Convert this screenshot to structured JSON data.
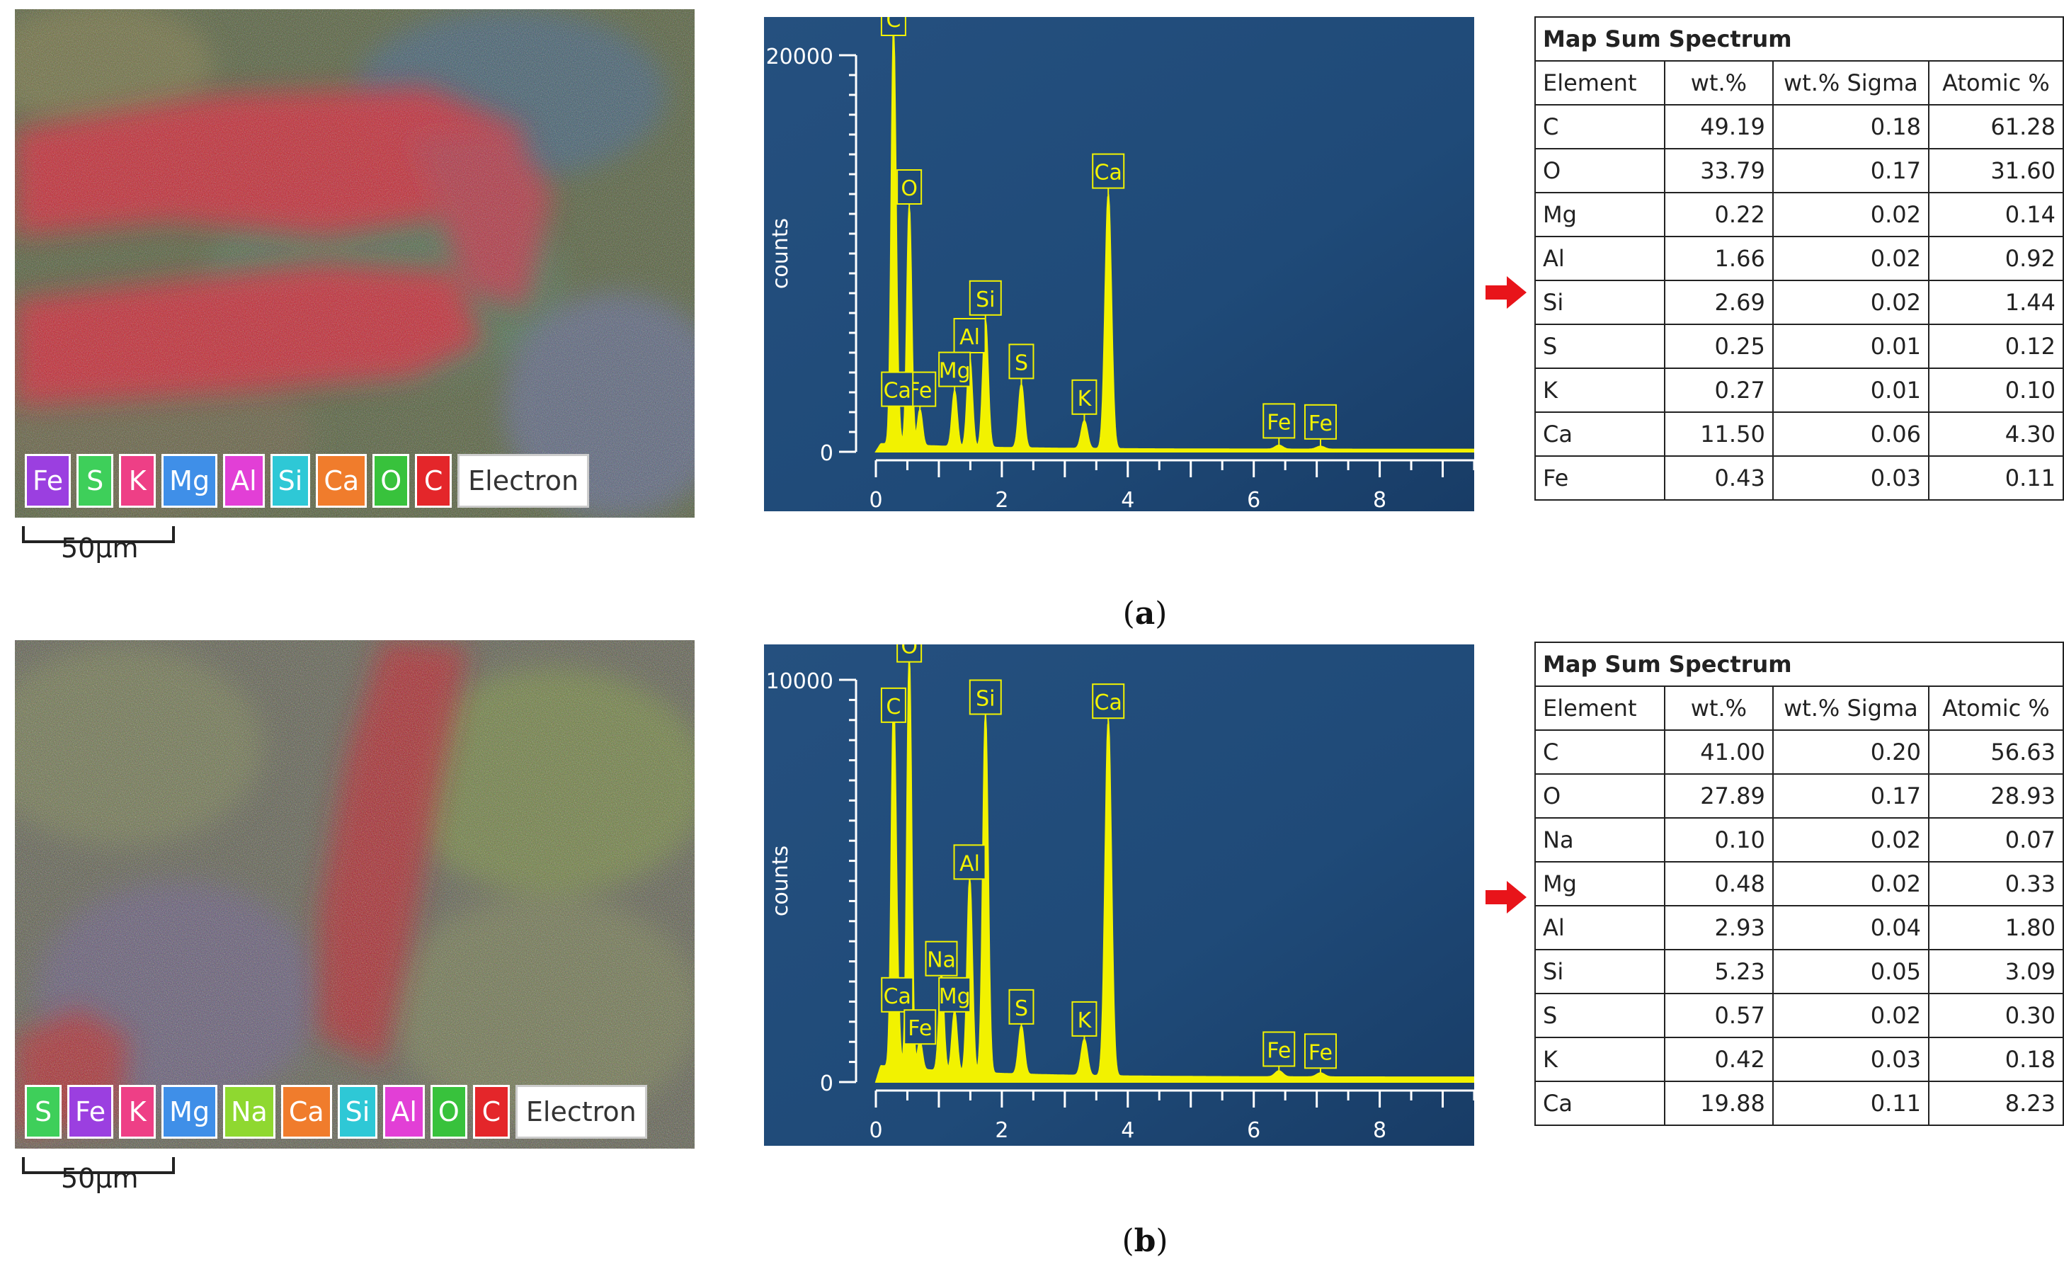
{
  "panels": [
    {
      "caption_letter": "a",
      "map": {
        "legend": [
          {
            "label": "Fe",
            "color": "#9b3fe0"
          },
          {
            "label": "S",
            "color": "#3ecf5a"
          },
          {
            "label": "K",
            "color": "#ee3f86"
          },
          {
            "label": "Mg",
            "color": "#3f8fe8"
          },
          {
            "label": "Al",
            "color": "#e23fd6"
          },
          {
            "label": "Si",
            "color": "#2ec8d6"
          },
          {
            "label": "Ca",
            "color": "#f07c2c"
          },
          {
            "label": "O",
            "color": "#38c23c"
          },
          {
            "label": "C",
            "color": "#e4262a"
          },
          {
            "label": "Electron",
            "color": "#ffffff"
          }
        ],
        "scale_label": "50µm"
      },
      "spectrum": {
        "ylabel": "counts",
        "ymax_label": "20000",
        "yzero_label": "0",
        "ymax": 20000,
        "xmax": 9.5,
        "x_ticks": [
          "0",
          "2",
          "4",
          "6",
          "8"
        ],
        "peaks": [
          {
            "label": "C",
            "keV": 0.28,
            "counts": 20500
          },
          {
            "label": "O",
            "keV": 0.53,
            "counts": 12000
          },
          {
            "label": "Si",
            "keV": 1.74,
            "counts": 6400
          },
          {
            "label": "Al",
            "keV": 1.49,
            "counts": 4500
          },
          {
            "label": "Mg",
            "keV": 1.25,
            "counts": 2800
          },
          {
            "label": "Fe",
            "keV": 0.7,
            "counts": 1800
          },
          {
            "label": "Ca",
            "keV": 0.34,
            "counts": 1800
          },
          {
            "label": "S",
            "keV": 2.31,
            "counts": 3200
          },
          {
            "label": "K",
            "keV": 3.31,
            "counts": 1400
          },
          {
            "label": "Ca",
            "keV": 3.69,
            "counts": 12800
          },
          {
            "label": "Fe",
            "keV": 6.4,
            "counts": 200
          },
          {
            "label": "Fe",
            "keV": 7.06,
            "counts": 150
          }
        ]
      },
      "table": {
        "title": "Map Sum Spectrum",
        "headers": [
          "Element",
          "wt.%",
          "wt.% Sigma",
          "Atomic %"
        ],
        "rows": [
          [
            "C",
            "49.19",
            "0.18",
            "61.28"
          ],
          [
            "O",
            "33.79",
            "0.17",
            "31.60"
          ],
          [
            "Mg",
            "0.22",
            "0.02",
            "0.14"
          ],
          [
            "Al",
            "1.66",
            "0.02",
            "0.92"
          ],
          [
            "Si",
            "2.69",
            "0.02",
            "1.44"
          ],
          [
            "S",
            "0.25",
            "0.01",
            "0.12"
          ],
          [
            "K",
            "0.27",
            "0.01",
            "0.10"
          ],
          [
            "Ca",
            "11.50",
            "0.06",
            "4.30"
          ],
          [
            "Fe",
            "0.43",
            "0.03",
            "0.11"
          ]
        ]
      }
    },
    {
      "caption_letter": "b",
      "map": {
        "legend": [
          {
            "label": "S",
            "color": "#3ecf5a"
          },
          {
            "label": "Fe",
            "color": "#9b3fe0"
          },
          {
            "label": "K",
            "color": "#ee3f86"
          },
          {
            "label": "Mg",
            "color": "#3f8fe8"
          },
          {
            "label": "Na",
            "color": "#8fd830"
          },
          {
            "label": "Ca",
            "color": "#f07c2c"
          },
          {
            "label": "Si",
            "color": "#2ec8d6"
          },
          {
            "label": "Al",
            "color": "#e23fd6"
          },
          {
            "label": "O",
            "color": "#38c23c"
          },
          {
            "label": "C",
            "color": "#e4262a"
          },
          {
            "label": "Electron",
            "color": "#ffffff"
          }
        ],
        "scale_label": "50µm"
      },
      "spectrum": {
        "ylabel": "counts",
        "ymax_label": "10000",
        "yzero_label": "0",
        "ymax": 10000,
        "xmax": 9.5,
        "x_ticks": [
          "0",
          "2",
          "4",
          "6",
          "8"
        ],
        "peaks": [
          {
            "label": "O",
            "keV": 0.53,
            "counts": 10200
          },
          {
            "label": "C",
            "keV": 0.28,
            "counts": 8700
          },
          {
            "label": "Si",
            "keV": 1.74,
            "counts": 8900
          },
          {
            "label": "Ca",
            "keV": 3.69,
            "counts": 8800
          },
          {
            "label": "Al",
            "keV": 1.49,
            "counts": 4800
          },
          {
            "label": "Na",
            "keV": 1.04,
            "counts": 2400
          },
          {
            "label": "Mg",
            "keV": 1.25,
            "counts": 1500
          },
          {
            "label": "Ca",
            "keV": 0.34,
            "counts": 1500
          },
          {
            "label": "Fe",
            "keV": 0.7,
            "counts": 700
          },
          {
            "label": "S",
            "keV": 2.31,
            "counts": 1200
          },
          {
            "label": "K",
            "keV": 3.31,
            "counts": 900
          },
          {
            "label": "Fe",
            "keV": 6.4,
            "counts": 150
          },
          {
            "label": "Fe",
            "keV": 7.06,
            "counts": 100
          }
        ]
      },
      "table": {
        "title": "Map Sum Spectrum",
        "headers": [
          "Element",
          "wt.%",
          "wt.% Sigma",
          "Atomic %"
        ],
        "rows": [
          [
            "C",
            "41.00",
            "0.20",
            "56.63"
          ],
          [
            "O",
            "27.89",
            "0.17",
            "28.93"
          ],
          [
            "Na",
            "0.10",
            "0.02",
            "0.07"
          ],
          [
            "Mg",
            "0.48",
            "0.02",
            "0.33"
          ],
          [
            "Al",
            "2.93",
            "0.04",
            "1.80"
          ],
          [
            "Si",
            "5.23",
            "0.05",
            "3.09"
          ],
          [
            "S",
            "0.57",
            "0.02",
            "0.30"
          ],
          [
            "K",
            "0.42",
            "0.03",
            "0.18"
          ],
          [
            "Ca",
            "19.88",
            "0.11",
            "8.23"
          ]
        ]
      }
    }
  ]
}
